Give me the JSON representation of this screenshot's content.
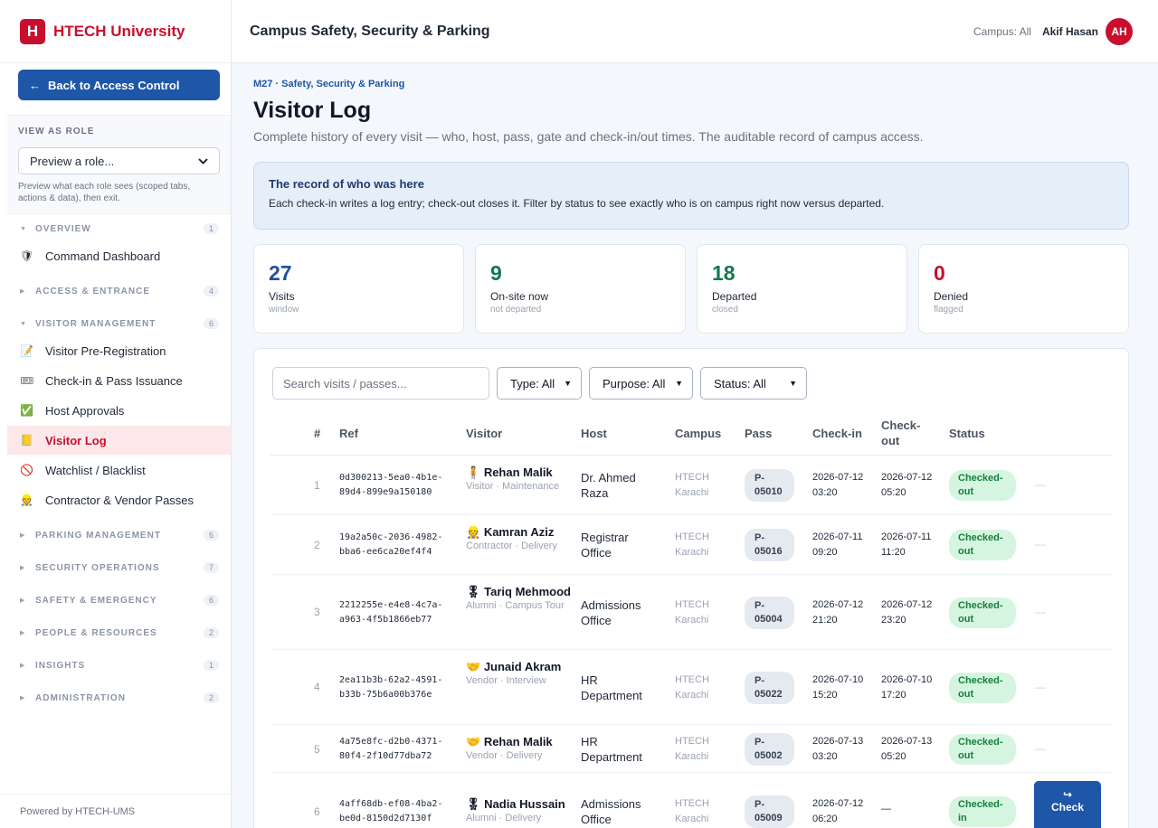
{
  "brand": {
    "logo_letter": "H",
    "name": "HTECH University",
    "color": "#c8102e"
  },
  "sidebar": {
    "back_label": "Back to Access Control",
    "back_arrow": "←",
    "role_title": "VIEW AS ROLE",
    "role_select": "Preview a role...",
    "role_help": "Preview what each role sees (scoped tabs, actions & data), then exit.",
    "sections": [
      {
        "label": "OVERVIEW",
        "count": "1",
        "expanded": true
      },
      {
        "label": "ACCESS & ENTRANCE",
        "count": "4",
        "expanded": false
      },
      {
        "label": "VISITOR MANAGEMENT",
        "count": "6",
        "expanded": true
      },
      {
        "label": "PARKING MANAGEMENT",
        "count": "6",
        "expanded": false
      },
      {
        "label": "SECURITY OPERATIONS",
        "count": "7",
        "expanded": false
      },
      {
        "label": "SAFETY & EMERGENCY",
        "count": "6",
        "expanded": false
      },
      {
        "label": "PEOPLE & RESOURCES",
        "count": "2",
        "expanded": false
      },
      {
        "label": "INSIGHTS",
        "count": "1",
        "expanded": false
      },
      {
        "label": "ADMINISTRATION",
        "count": "2",
        "expanded": false
      }
    ],
    "items": [
      {
        "label": "Command Dashboard",
        "icon": "shield-icon",
        "glyph": "🛡"
      },
      {
        "label": "Visitor Pre-Registration",
        "icon": "clipboard-icon",
        "glyph": "📝"
      },
      {
        "label": "Check-in & Pass Issuance",
        "icon": "ticket-icon",
        "glyph": "🎟"
      },
      {
        "label": "Host Approvals",
        "icon": "checkmark-icon",
        "glyph": "✅"
      },
      {
        "label": "Visitor Log",
        "icon": "notebook-icon",
        "glyph": "📒",
        "active": true
      },
      {
        "label": "Watchlist / Blacklist",
        "icon": "prohibited-icon",
        "glyph": "🚫"
      },
      {
        "label": "Contractor & Vendor Passes",
        "icon": "worker-icon",
        "glyph": "👷"
      }
    ],
    "caret_open": "▼",
    "caret_closed": "▶",
    "footer": "Powered by HTECH-UMS"
  },
  "header": {
    "title": "Campus Safety, Security & Parking",
    "campus": "Campus: All",
    "user": "Akif Hasan",
    "avatar_initials": "AH"
  },
  "page": {
    "crumb": "M27 · Safety, Security & Parking",
    "title": "Visitor Log",
    "subtitle": "Complete history of every visit — who, host, pass, gate and check-in/out times. The auditable record of campus access."
  },
  "info": {
    "title": "The record of who was here",
    "text": "Each check-in writes a log entry; check-out closes it. Filter by status to see exactly who is on campus right now versus departed."
  },
  "stats": [
    {
      "value": "27",
      "label": "Visits",
      "sub": "window",
      "color": "#1e4fa0"
    },
    {
      "value": "9",
      "label": "On-site now",
      "sub": "not departed",
      "color": "#11794b"
    },
    {
      "value": "18",
      "label": "Departed",
      "sub": "closed",
      "color": "#11794b"
    },
    {
      "value": "0",
      "label": "Denied",
      "sub": "flagged",
      "color": "#c8102e"
    }
  ],
  "filters": {
    "search_placeholder": "Search visits / passes...",
    "type": "Type: All",
    "purpose": "Purpose: All",
    "status": "Status: All",
    "chevron": "▼"
  },
  "table": {
    "headers": {
      "num": "#",
      "ref": "Ref",
      "visitor": "Visitor",
      "host": "Host",
      "campus": "Campus",
      "pass": "Pass",
      "checkin": "Check-in",
      "checkout": "Check-out",
      "status": "Status"
    },
    "rows": [
      {
        "num": "1",
        "ref": "0d300213-5ea0-4b1e-89d4-899e9a150180",
        "icon": "person-icon",
        "glyph": "🧍",
        "name": "Rehan Malik",
        "meta": "Visitor · Maintenance",
        "host": "Dr. Ahmed Raza",
        "campus": "HTECH Karachi",
        "pass": "P-05010",
        "in": "2026-07-12 03:20",
        "out": "2026-07-12 05:20",
        "status": "Checked-out",
        "action": "—"
      },
      {
        "num": "2",
        "ref": "19a2a50c-2036-4982-bba6-ee6ca20ef4f4",
        "icon": "worker-icon",
        "glyph": "👷",
        "name": "Kamran Aziz",
        "meta": "Contractor · Delivery",
        "host": "Registrar Office",
        "campus": "HTECH Karachi",
        "pass": "P-05016",
        "in": "2026-07-11 09:20",
        "out": "2026-07-11 11:20",
        "status": "Checked-out",
        "action": "—"
      },
      {
        "num": "3",
        "ref": "2212255e-e4e8-4c7a-a963-4f5b1866eb77",
        "icon": "medal-icon",
        "glyph": "🎖",
        "name": "Tariq Mehmood",
        "meta": "Alumni · Campus Tour",
        "host": "Admissions Office",
        "campus": "HTECH Karachi",
        "pass": "P-05004",
        "in": "2026-07-12 21:20",
        "out": "2026-07-12 23:20",
        "status": "Checked-out",
        "action": "—"
      },
      {
        "num": "4",
        "ref": "2ea11b3b-62a2-4591-b33b-75b6a00b376e",
        "icon": "handshake-icon",
        "glyph": "🤝",
        "name": "Junaid Akram",
        "meta": "Vendor · Interview",
        "host": "HR Department",
        "campus": "HTECH Karachi",
        "pass": "P-05022",
        "in": "2026-07-10 15:20",
        "out": "2026-07-10 17:20",
        "status": "Checked-out",
        "action": "—"
      },
      {
        "num": "5",
        "ref": "4a75e8fc-d2b0-4371-80f4-2f10d77dba72",
        "icon": "handshake-icon",
        "glyph": "🤝",
        "name": "Rehan Malik",
        "meta": "Vendor · Delivery",
        "host": "HR Department",
        "campus": "HTECH Karachi",
        "pass": "P-05002",
        "in": "2026-07-13 03:20",
        "out": "2026-07-13 05:20",
        "status": "Checked-out",
        "action": "—"
      },
      {
        "num": "6",
        "ref": "4aff68db-ef08-4ba2-be0d-8150d2d7130f",
        "icon": "medal-icon",
        "glyph": "🎖",
        "name": "Nadia Hussain",
        "meta": "Alumni · Delivery",
        "host": "Admissions Office",
        "campus": "HTECH Karachi",
        "pass": "P-05009",
        "in": "2026-07-12 06:20",
        "out": "—",
        "status": "Checked-in",
        "action": "Check",
        "action_icon": "↪"
      }
    ]
  }
}
